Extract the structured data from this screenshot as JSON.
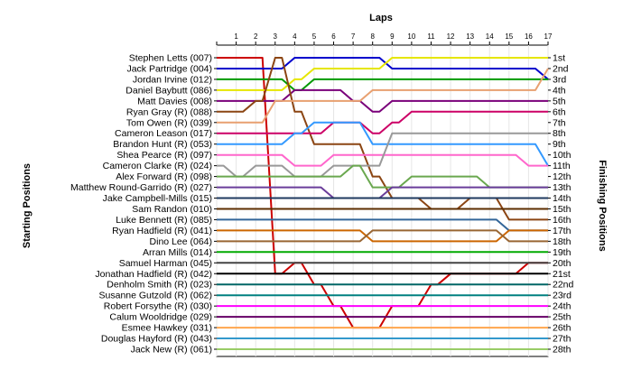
{
  "chart_data": {
    "type": "line",
    "title": "",
    "xlabel": "Laps",
    "ylabel_left": "Starting Positions",
    "ylabel_right": "Finishing Positions",
    "laps": [
      1,
      2,
      3,
      4,
      5,
      6,
      7,
      8,
      9,
      10,
      11,
      12,
      13,
      14,
      15,
      16,
      17
    ],
    "xlim": [
      0,
      17
    ],
    "ylim": [
      1,
      28
    ],
    "grid": "vertical",
    "finishing_labels": [
      "1st",
      "2nd",
      "3rd",
      "4th",
      "5th",
      "6th",
      "7th",
      "8th",
      "9th",
      "10th",
      "11th",
      "12th",
      "13th",
      "14th",
      "15th",
      "16th",
      "17th",
      "18th",
      "19th",
      "20th",
      "21st",
      "22nd",
      "23rd",
      "24th",
      "25th",
      "26th",
      "27th",
      "28th"
    ],
    "series": [
      {
        "name": "Stephen Letts (007)",
        "color": "#cc0000",
        "positions": [
          1,
          1,
          1,
          21,
          20,
          22,
          24,
          26,
          26,
          24,
          24,
          22,
          21,
          21,
          21,
          21,
          20,
          20
        ]
      },
      {
        "name": "Jack Partridge (004)",
        "color": "#0000cc",
        "positions": [
          2,
          2,
          2,
          2,
          1,
          1,
          1,
          1,
          1,
          2,
          2,
          2,
          2,
          2,
          2,
          2,
          2,
          3
        ]
      },
      {
        "name": "Jordan Irvine (012)",
        "color": "#009900",
        "positions": [
          3,
          3,
          3,
          3,
          4,
          3,
          3,
          3,
          3,
          3,
          3,
          3,
          3,
          3,
          3,
          3,
          3,
          3
        ]
      },
      {
        "name": "Daniel Baybutt (086)",
        "color": "#e6e600",
        "positions": [
          4,
          4,
          4,
          4,
          3,
          2,
          2,
          2,
          2,
          1,
          1,
          1,
          1,
          1,
          1,
          1,
          1,
          1
        ]
      },
      {
        "name": "Matt Davies (008)",
        "color": "#7a007a",
        "positions": [
          5,
          5,
          5,
          5,
          4,
          4,
          4,
          5,
          6,
          5,
          5,
          5,
          5,
          5,
          5,
          5,
          5,
          5
        ]
      },
      {
        "name": "Ryan Gray (R) (088)",
        "color": "#8b4513",
        "positions": [
          6,
          6,
          5,
          1,
          6,
          9,
          9,
          9,
          12,
          14,
          14,
          15,
          15,
          14,
          14,
          16,
          16,
          16
        ]
      },
      {
        "name": "Tom Owen (R) (039)",
        "color": "#e8a070",
        "positions": [
          7,
          7,
          7,
          5,
          5,
          5,
          5,
          5,
          4,
          4,
          4,
          4,
          4,
          4,
          4,
          4,
          4,
          2
        ]
      },
      {
        "name": "Cameron Leason (017)",
        "color": "#cc0066",
        "positions": [
          8,
          8,
          8,
          8,
          8,
          8,
          7,
          7,
          8,
          7,
          6,
          6,
          6,
          6,
          6,
          6,
          6,
          6
        ]
      },
      {
        "name": "Brandon Hunt (R) (053)",
        "color": "#3399ff",
        "positions": [
          9,
          9,
          9,
          9,
          8,
          7,
          7,
          7,
          9,
          9,
          9,
          9,
          9,
          9,
          9,
          9,
          9,
          11
        ]
      },
      {
        "name": "Shea Pearce (R) (097)",
        "color": "#ff66cc",
        "positions": [
          10,
          10,
          10,
          10,
          11,
          11,
          10,
          10,
          10,
          10,
          10,
          10,
          10,
          10,
          10,
          10,
          11,
          11
        ]
      },
      {
        "name": "Cameron Clarke (R) (024)",
        "color": "#999999",
        "positions": [
          11,
          12,
          11,
          11,
          12,
          12,
          11,
          11,
          11,
          8,
          8,
          8,
          8,
          8,
          8,
          8,
          8,
          8
        ]
      },
      {
        "name": "Alex Forward (R) (098)",
        "color": "#6aa84f",
        "positions": [
          12,
          12,
          12,
          12,
          12,
          12,
          12,
          11,
          13,
          13,
          12,
          12,
          12,
          12,
          13,
          13,
          13,
          13
        ]
      },
      {
        "name": "Matthew Round-Garrido (R) (027)",
        "color": "#6a3d9a",
        "positions": [
          13,
          13,
          13,
          13,
          13,
          13,
          14,
          14,
          14,
          13,
          13,
          13,
          13,
          13,
          13,
          13,
          13,
          13
        ]
      },
      {
        "name": "Jake Campbell-Mills (015)",
        "color": "#1f3a5f",
        "positions": [
          14,
          14,
          14,
          14,
          14,
          14,
          14,
          14,
          14,
          14,
          14,
          14,
          14,
          14,
          14,
          14,
          14,
          14
        ]
      },
      {
        "name": "Sam Randon (010)",
        "color": "#5c2e00",
        "positions": [
          15,
          15,
          15,
          15,
          15,
          15,
          15,
          15,
          15,
          15,
          15,
          15,
          15,
          15,
          15,
          15,
          15,
          15
        ]
      },
      {
        "name": "Luke Bennett (R) (085)",
        "color": "#336699",
        "positions": [
          16,
          16,
          16,
          16,
          16,
          16,
          16,
          16,
          16,
          16,
          16,
          16,
          16,
          16,
          16,
          17,
          17,
          17
        ]
      },
      {
        "name": "Ryan Hadfield (R) (041)",
        "color": "#cc6600",
        "positions": [
          17,
          17,
          17,
          17,
          17,
          17,
          17,
          17,
          18,
          18,
          18,
          18,
          18,
          18,
          18,
          17,
          17,
          17
        ]
      },
      {
        "name": "Dino Lee (064)",
        "color": "#996633",
        "positions": [
          18,
          18,
          18,
          18,
          18,
          18,
          18,
          18,
          17,
          17,
          17,
          17,
          17,
          17,
          17,
          18,
          18,
          18
        ]
      },
      {
        "name": "Arran Mills (014)",
        "color": "#00aa00",
        "positions": [
          19,
          19,
          19,
          19,
          19,
          19,
          19,
          19,
          19,
          19,
          19,
          19,
          19,
          19,
          19,
          19,
          19,
          19
        ]
      },
      {
        "name": "Samuel Harman (045)",
        "color": "#444444",
        "positions": [
          20,
          20,
          20,
          20,
          20,
          20,
          20,
          20,
          20,
          20,
          20,
          20,
          20,
          20,
          20,
          20,
          20,
          20
        ]
      },
      {
        "name": "Jonathan Hadfield (R) (042)",
        "color": "#000000",
        "positions": [
          21,
          21,
          21,
          21,
          21,
          21,
          21,
          21,
          21,
          21,
          21,
          21,
          21,
          21,
          21,
          21,
          21,
          21
        ]
      },
      {
        "name": "Denholm Smith (R) (023)",
        "color": "#006666",
        "positions": [
          22,
          22,
          22,
          22,
          22,
          22,
          22,
          22,
          22,
          22,
          22,
          22,
          22,
          22,
          22,
          22,
          22,
          22
        ]
      },
      {
        "name": "Susanne Gutzold (R) (062)",
        "color": "#008080",
        "positions": [
          23,
          23,
          23,
          23,
          23,
          23,
          23,
          23,
          23,
          23,
          23,
          23,
          23,
          23,
          23,
          23,
          23,
          23
        ]
      },
      {
        "name": "Robert Forsythe (R) (030)",
        "color": "#ff00ff",
        "positions": [
          24,
          24,
          24,
          24,
          24,
          24,
          24,
          24,
          24,
          24,
          24,
          24,
          24,
          24,
          24,
          24,
          24,
          24
        ]
      },
      {
        "name": "Calum Wooldridge (029)",
        "color": "#660066",
        "positions": [
          25,
          25,
          25,
          25,
          25,
          25,
          25,
          25,
          25,
          25,
          25,
          25,
          25,
          25,
          25,
          25,
          25,
          25
        ]
      },
      {
        "name": "Esmee Hawkey (031)",
        "color": "#ffa64d",
        "positions": [
          26,
          26,
          26,
          26,
          26,
          26,
          26,
          26,
          26,
          26,
          26,
          26,
          26,
          26,
          26,
          26,
          26,
          26
        ]
      },
      {
        "name": "Douglas Hayford (R) (043)",
        "color": "#3399cc",
        "positions": [
          27,
          27,
          27,
          27,
          27,
          27,
          27,
          27,
          27,
          27,
          27,
          27,
          27,
          27,
          27,
          27,
          27,
          27
        ]
      },
      {
        "name": "Jack New (R) (061)",
        "color": "#99cc66",
        "positions": [
          28,
          28,
          28,
          28,
          28,
          28,
          28,
          28,
          28,
          28,
          28,
          28,
          28,
          28,
          28,
          28,
          28,
          28
        ]
      }
    ]
  }
}
